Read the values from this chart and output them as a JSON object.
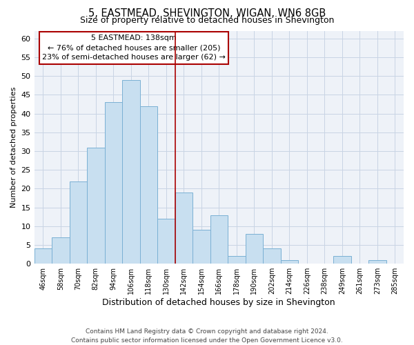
{
  "title": "5, EASTMEAD, SHEVINGTON, WIGAN, WN6 8GB",
  "subtitle": "Size of property relative to detached houses in Shevington",
  "xlabel": "Distribution of detached houses by size in Shevington",
  "ylabel": "Number of detached properties",
  "footer_line1": "Contains HM Land Registry data © Crown copyright and database right 2024.",
  "footer_line2": "Contains public sector information licensed under the Open Government Licence v3.0.",
  "bin_labels": [
    "46sqm",
    "58sqm",
    "70sqm",
    "82sqm",
    "94sqm",
    "106sqm",
    "118sqm",
    "130sqm",
    "142sqm",
    "154sqm",
    "166sqm",
    "178sqm",
    "190sqm",
    "202sqm",
    "214sqm",
    "226sqm",
    "238sqm",
    "249sqm",
    "261sqm",
    "273sqm",
    "285sqm"
  ],
  "bar_heights": [
    4,
    7,
    22,
    31,
    43,
    49,
    42,
    12,
    19,
    9,
    13,
    2,
    8,
    4,
    1,
    0,
    0,
    2,
    0,
    1,
    0
  ],
  "bar_color": "#c8dff0",
  "bar_edge_color": "#7ab0d4",
  "annotation_title": "5 EASTMEAD: 138sqm",
  "annotation_line1": "← 76% of detached houses are smaller (205)",
  "annotation_line2": "23% of semi-detached houses are larger (62) →",
  "vline_index": 8,
  "vline_color": "#aa0000",
  "annotation_box_edge_color": "#aa0000",
  "ylim": [
    0,
    62
  ],
  "yticks": [
    0,
    5,
    10,
    15,
    20,
    25,
    30,
    35,
    40,
    45,
    50,
    55,
    60
  ],
  "background_color": "#ffffff",
  "grid_color": "#c8d4e4",
  "ax_background": "#eef2f8"
}
